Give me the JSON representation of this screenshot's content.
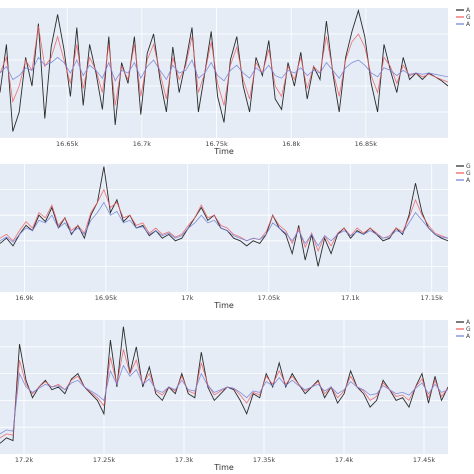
{
  "colors": {
    "plot_bg": "#e5ecf6",
    "grid": "#ffffff",
    "series": [
      "#222222",
      "#ef5a5a",
      "#6f7fd8"
    ]
  },
  "chart_data": [
    {
      "type": "line",
      "xlabel": "Time",
      "xlim": [
        16.605,
        16.905
      ],
      "xticks": [
        16.65,
        16.7,
        16.75,
        16.8,
        16.85
      ],
      "xtick_labels": [
        "16.65k",
        "16.7k",
        "16.75k",
        "16.8k",
        "16.85k"
      ],
      "legend": {
        "placement": "top-right",
        "entries": [
          "A",
          "G",
          "A"
        ]
      },
      "series": [
        {
          "values": [
            0.35,
            0.72,
            0.05,
            0.2,
            0.62,
            0.4,
            0.88,
            0.15,
            0.7,
            0.95,
            0.68,
            0.32,
            0.85,
            0.25,
            0.72,
            0.5,
            0.22,
            0.78,
            0.1,
            0.58,
            0.42,
            0.78,
            0.18,
            0.65,
            0.8,
            0.45,
            0.2,
            0.7,
            0.35,
            0.58,
            0.85,
            0.2,
            0.5,
            0.82,
            0.32,
            0.12,
            0.6,
            0.78,
            0.4,
            0.2,
            0.62,
            0.48,
            0.75,
            0.3,
            0.22,
            0.58,
            0.4,
            0.66,
            0.3,
            0.55,
            0.45,
            0.9,
            0.5,
            0.2,
            0.62,
            0.82,
            0.98,
            0.78,
            0.42,
            0.2,
            0.72,
            0.52,
            0.35,
            0.62,
            0.45,
            0.5,
            0.45,
            0.5,
            0.47,
            0.44,
            0.4
          ]
        },
        {
          "values": [
            0.5,
            0.62,
            0.28,
            0.4,
            0.6,
            0.52,
            0.86,
            0.55,
            0.62,
            0.78,
            0.6,
            0.42,
            0.72,
            0.38,
            0.62,
            0.52,
            0.35,
            0.72,
            0.25,
            0.55,
            0.45,
            0.72,
            0.32,
            0.6,
            0.72,
            0.5,
            0.3,
            0.62,
            0.45,
            0.55,
            0.78,
            0.35,
            0.5,
            0.74,
            0.42,
            0.25,
            0.56,
            0.7,
            0.45,
            0.3,
            0.58,
            0.5,
            0.68,
            0.4,
            0.32,
            0.55,
            0.45,
            0.62,
            0.38,
            0.55,
            0.5,
            0.78,
            0.52,
            0.32,
            0.6,
            0.74,
            0.8,
            0.7,
            0.48,
            0.35,
            0.62,
            0.55,
            0.42,
            0.56,
            0.48,
            0.5,
            0.47,
            0.49,
            0.47,
            0.45,
            0.43
          ]
        },
        {
          "values": [
            0.5,
            0.55,
            0.45,
            0.48,
            0.54,
            0.52,
            0.62,
            0.56,
            0.58,
            0.62,
            0.58,
            0.5,
            0.6,
            0.48,
            0.56,
            0.52,
            0.46,
            0.58,
            0.44,
            0.52,
            0.5,
            0.58,
            0.46,
            0.55,
            0.6,
            0.52,
            0.45,
            0.56,
            0.5,
            0.52,
            0.6,
            0.46,
            0.5,
            0.58,
            0.48,
            0.44,
            0.52,
            0.56,
            0.5,
            0.46,
            0.54,
            0.5,
            0.56,
            0.48,
            0.46,
            0.52,
            0.5,
            0.54,
            0.48,
            0.52,
            0.5,
            0.58,
            0.52,
            0.46,
            0.54,
            0.58,
            0.6,
            0.56,
            0.5,
            0.47,
            0.54,
            0.52,
            0.48,
            0.52,
            0.49,
            0.5,
            0.49,
            0.5,
            0.49,
            0.48,
            0.47
          ]
        }
      ]
    },
    {
      "type": "line",
      "xlabel": "Time",
      "xlim": [
        16.885,
        17.16
      ],
      "xticks": [
        16.9,
        16.95,
        17.0,
        17.05,
        17.1,
        17.15
      ],
      "xtick_labels": [
        "16.9k",
        "16.95k",
        "17k",
        "17.05k",
        "17.1k",
        "17.15k"
      ],
      "legend": {
        "placement": "top-right",
        "entries": [
          "G",
          "G",
          "A"
        ]
      },
      "series": [
        {
          "values": [
            0.38,
            0.42,
            0.36,
            0.45,
            0.52,
            0.48,
            0.6,
            0.55,
            0.66,
            0.5,
            0.58,
            0.45,
            0.52,
            0.42,
            0.6,
            0.7,
            0.98,
            0.62,
            0.72,
            0.55,
            0.6,
            0.5,
            0.52,
            0.44,
            0.48,
            0.42,
            0.45,
            0.4,
            0.42,
            0.5,
            0.58,
            0.66,
            0.56,
            0.6,
            0.5,
            0.48,
            0.42,
            0.4,
            0.36,
            0.4,
            0.38,
            0.45,
            0.6,
            0.5,
            0.45,
            0.3,
            0.52,
            0.25,
            0.45,
            0.2,
            0.42,
            0.3,
            0.45,
            0.5,
            0.42,
            0.48,
            0.45,
            0.5,
            0.45,
            0.4,
            0.42,
            0.5,
            0.45,
            0.6,
            0.85,
            0.62,
            0.5,
            0.45,
            0.42,
            0.4
          ]
        },
        {
          "values": [
            0.42,
            0.45,
            0.4,
            0.48,
            0.55,
            0.5,
            0.62,
            0.58,
            0.68,
            0.52,
            0.58,
            0.48,
            0.52,
            0.46,
            0.62,
            0.7,
            0.8,
            0.66,
            0.7,
            0.58,
            0.6,
            0.52,
            0.54,
            0.46,
            0.5,
            0.45,
            0.47,
            0.43,
            0.45,
            0.52,
            0.58,
            0.68,
            0.58,
            0.6,
            0.52,
            0.5,
            0.45,
            0.43,
            0.4,
            0.42,
            0.41,
            0.47,
            0.6,
            0.52,
            0.48,
            0.38,
            0.5,
            0.35,
            0.46,
            0.32,
            0.44,
            0.36,
            0.46,
            0.5,
            0.44,
            0.5,
            0.46,
            0.5,
            0.46,
            0.42,
            0.44,
            0.5,
            0.47,
            0.58,
            0.72,
            0.6,
            0.52,
            0.46,
            0.44,
            0.42
          ]
        },
        {
          "values": [
            0.4,
            0.43,
            0.39,
            0.45,
            0.5,
            0.48,
            0.56,
            0.54,
            0.6,
            0.5,
            0.54,
            0.46,
            0.5,
            0.45,
            0.56,
            0.62,
            0.7,
            0.6,
            0.63,
            0.54,
            0.56,
            0.5,
            0.51,
            0.45,
            0.48,
            0.44,
            0.46,
            0.42,
            0.44,
            0.5,
            0.54,
            0.6,
            0.54,
            0.56,
            0.5,
            0.48,
            0.44,
            0.42,
            0.4,
            0.42,
            0.41,
            0.45,
            0.54,
            0.5,
            0.46,
            0.4,
            0.48,
            0.38,
            0.45,
            0.36,
            0.44,
            0.4,
            0.45,
            0.48,
            0.44,
            0.47,
            0.45,
            0.48,
            0.45,
            0.42,
            0.43,
            0.48,
            0.46,
            0.54,
            0.62,
            0.56,
            0.5,
            0.45,
            0.43,
            0.42
          ]
        }
      ]
    },
    {
      "type": "line",
      "xlabel": "Time",
      "xlim": [
        17.185,
        17.465
      ],
      "xticks": [
        17.2,
        17.25,
        17.3,
        17.35,
        17.4,
        17.45
      ],
      "xtick_labels": [
        "17.2k",
        "17.25k",
        "17.3k",
        "17.35k",
        "17.4k",
        "17.45k"
      ],
      "legend": {
        "placement": "top-right",
        "entries": [
          "A",
          "G",
          "A"
        ]
      },
      "series": [
        {
          "values": [
            0.08,
            0.12,
            0.1,
            0.82,
            0.55,
            0.42,
            0.5,
            0.55,
            0.48,
            0.5,
            0.45,
            0.56,
            0.6,
            0.5,
            0.45,
            0.4,
            0.3,
            0.85,
            0.5,
            0.95,
            0.6,
            0.8,
            0.5,
            0.65,
            0.45,
            0.4,
            0.5,
            0.45,
            0.6,
            0.45,
            0.42,
            0.76,
            0.5,
            0.4,
            0.45,
            0.5,
            0.48,
            0.4,
            0.3,
            0.45,
            0.42,
            0.6,
            0.5,
            0.68,
            0.5,
            0.6,
            0.52,
            0.45,
            0.5,
            0.55,
            0.42,
            0.5,
            0.38,
            0.45,
            0.62,
            0.5,
            0.45,
            0.35,
            0.4,
            0.55,
            0.48,
            0.4,
            0.42,
            0.35,
            0.5,
            0.6,
            0.38,
            0.58,
            0.4,
            0.5
          ]
        },
        {
          "values": [
            0.12,
            0.15,
            0.14,
            0.7,
            0.52,
            0.45,
            0.5,
            0.54,
            0.5,
            0.52,
            0.48,
            0.55,
            0.58,
            0.5,
            0.46,
            0.42,
            0.36,
            0.72,
            0.52,
            0.78,
            0.6,
            0.7,
            0.52,
            0.6,
            0.47,
            0.44,
            0.5,
            0.47,
            0.58,
            0.47,
            0.45,
            0.68,
            0.52,
            0.44,
            0.47,
            0.5,
            0.49,
            0.44,
            0.38,
            0.46,
            0.44,
            0.58,
            0.52,
            0.62,
            0.52,
            0.58,
            0.52,
            0.47,
            0.5,
            0.54,
            0.45,
            0.5,
            0.42,
            0.47,
            0.58,
            0.5,
            0.47,
            0.4,
            0.43,
            0.53,
            0.48,
            0.43,
            0.44,
            0.4,
            0.5,
            0.56,
            0.42,
            0.55,
            0.43,
            0.49
          ]
        },
        {
          "values": [
            0.15,
            0.18,
            0.17,
            0.6,
            0.5,
            0.46,
            0.49,
            0.52,
            0.5,
            0.51,
            0.48,
            0.53,
            0.55,
            0.5,
            0.47,
            0.44,
            0.4,
            0.62,
            0.52,
            0.66,
            0.58,
            0.63,
            0.52,
            0.56,
            0.48,
            0.46,
            0.5,
            0.48,
            0.55,
            0.48,
            0.47,
            0.6,
            0.51,
            0.46,
            0.48,
            0.5,
            0.49,
            0.46,
            0.42,
            0.47,
            0.46,
            0.54,
            0.51,
            0.57,
            0.51,
            0.55,
            0.51,
            0.48,
            0.5,
            0.52,
            0.47,
            0.5,
            0.45,
            0.48,
            0.54,
            0.5,
            0.48,
            0.44,
            0.45,
            0.51,
            0.48,
            0.45,
            0.46,
            0.44,
            0.49,
            0.53,
            0.45,
            0.52,
            0.46,
            0.48
          ]
        }
      ]
    }
  ]
}
